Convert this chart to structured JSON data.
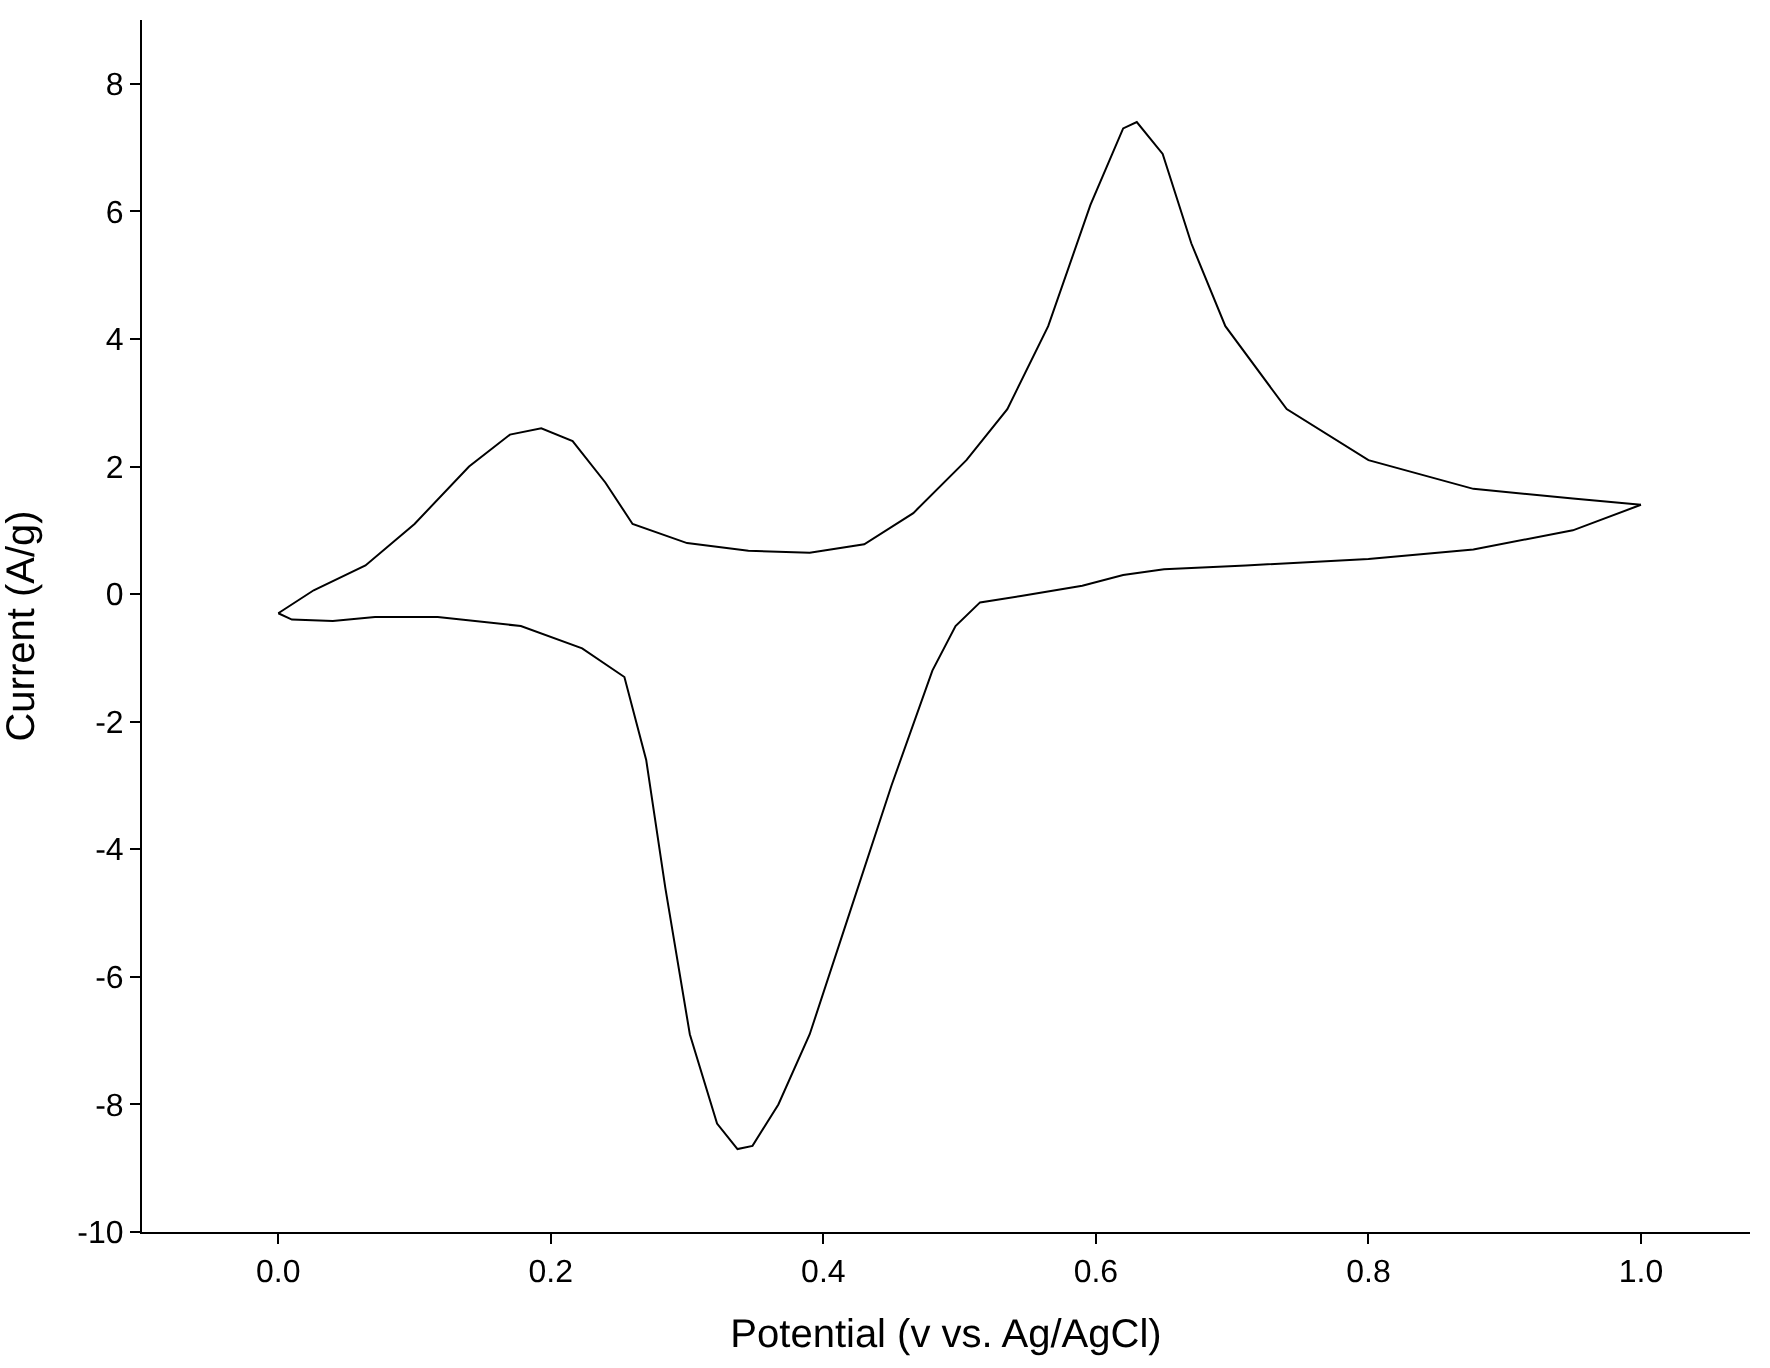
{
  "chart_data": {
    "type": "line",
    "xlabel": "Potential (v vs. Ag/AgCl)",
    "ylabel": "Current (A/g)",
    "xlim": [
      -0.1,
      1.08
    ],
    "xticks": [
      {
        "value": 0,
        "label": "0.0"
      },
      0.2,
      0.4,
      0.6,
      0.8,
      {
        "value": 1,
        "label": "1.0"
      }
    ],
    "ylim": [
      -10,
      9
    ],
    "yticks": [
      -10,
      -8,
      -6,
      -4,
      -2,
      0,
      2,
      4,
      6,
      8
    ],
    "marker": "none",
    "line_style": "solid",
    "series": [
      {
        "color": "#000000",
        "x": [
          0.0,
          0.026,
          0.064,
          0.1,
          0.14,
          0.17,
          0.193,
          0.216,
          0.24,
          0.26,
          0.3,
          0.345,
          0.39,
          0.43,
          0.466,
          0.505,
          0.535,
          0.565,
          0.596,
          0.62,
          0.63,
          0.649,
          0.67,
          0.695,
          0.74,
          0.8,
          0.877,
          0.95,
          1.0
        ],
        "values": [
          -0.3,
          0.06,
          0.45,
          1.1,
          2.0,
          2.5,
          2.6,
          2.4,
          1.75,
          1.1,
          0.8,
          0.68,
          0.65,
          0.78,
          1.27,
          2.1,
          2.9,
          4.2,
          6.1,
          7.3,
          7.4,
          6.9,
          5.5,
          4.2,
          2.9,
          2.1,
          1.65,
          1.5,
          1.4
        ]
      },
      {
        "color": "#000000",
        "x": [
          1.0,
          0.95,
          0.877,
          0.8,
          0.71,
          0.65,
          0.62,
          0.59,
          0.545,
          0.515,
          0.497,
          0.48,
          0.45,
          0.42,
          0.39,
          0.367,
          0.348,
          0.337,
          0.322,
          0.302,
          0.284,
          0.27,
          0.254,
          0.223,
          0.178,
          0.117,
          0.071,
          0.04,
          0.01,
          0.0
        ],
        "values": [
          1.4,
          1.0,
          0.7,
          0.55,
          0.45,
          0.39,
          0.3,
          0.13,
          -0.03,
          -0.13,
          -0.5,
          -1.2,
          -3.0,
          -4.95,
          -6.9,
          -8.0,
          -8.65,
          -8.7,
          -8.3,
          -6.9,
          -4.6,
          -2.6,
          -1.3,
          -0.85,
          -0.5,
          -0.36,
          -0.36,
          -0.42,
          -0.4,
          -0.3
        ]
      }
    ]
  }
}
